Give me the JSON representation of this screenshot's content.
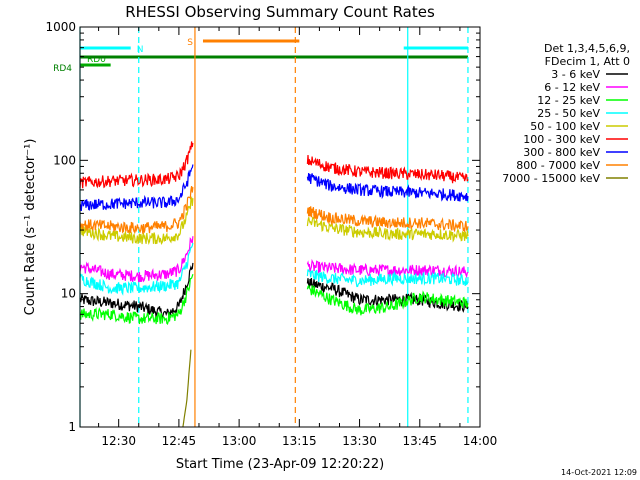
{
  "chart_data": {
    "type": "line",
    "title": "RHESSI Observing Summary Count Rates",
    "xlabel": "Start Time (23-Apr-09 12:20:22)",
    "ylabel": "Count Rate (s⁻¹ detector⁻¹)",
    "yscale": "log",
    "ylim": [
      1,
      1000
    ],
    "y_ticks": [
      {
        "value": 1,
        "label": "1"
      },
      {
        "value": 10,
        "label": "10"
      },
      {
        "value": 100,
        "label": "100"
      },
      {
        "value": 1000,
        "label": "1000"
      }
    ],
    "xlim": [
      "12:20:22",
      "14:00"
    ],
    "x_ticks": [
      "12:30",
      "12:45",
      "13:00",
      "13:15",
      "13:30",
      "13:45",
      "14:00"
    ],
    "timestamp": "14-Oct-2021 12:09",
    "legend": {
      "position": "right",
      "header": [
        "Det 1,3,4,5,6,9,",
        "FDecim 1, Att 0"
      ],
      "entries": [
        {
          "label": "3 - 6 keV",
          "color": "#000000"
        },
        {
          "label": "6 - 12 keV",
          "color": "#ff00ff"
        },
        {
          "label": "12 - 25 keV",
          "color": "#00ff00"
        },
        {
          "label": "25 - 50 keV",
          "color": "#00ffff"
        },
        {
          "label": "50 - 100 keV",
          "color": "#cccc00"
        },
        {
          "label": "100 - 300 keV",
          "color": "#ff0000"
        },
        {
          "label": "300 - 800 keV",
          "color": "#0000ff"
        },
        {
          "label": "800 - 7000 keV",
          "color": "#ff8000"
        },
        {
          "label": "7000 - 15000 keV",
          "color": "#808000"
        }
      ]
    },
    "flags": [
      {
        "label": "N",
        "color": "#00ffff",
        "spans": [
          [
            "12:20:22",
            "12:33"
          ],
          [
            "13:41",
            "13:57"
          ]
        ]
      },
      {
        "label": "S",
        "color": "#ff8000",
        "spans": [
          [
            "12:51",
            "13:15"
          ]
        ]
      },
      {
        "label": "RD0",
        "color": "#00aa00",
        "spans": [
          [
            "12:20:22",
            "12:28"
          ]
        ]
      },
      {
        "label": "RD4",
        "color": "#008000",
        "spans": [
          [
            "12:20:22",
            "13:57"
          ]
        ]
      }
    ],
    "vertical_markers": [
      {
        "time": "12:20:22",
        "color": "#00ffff",
        "style": "solid"
      },
      {
        "time": "12:35",
        "color": "#00ffff",
        "style": "dashed"
      },
      {
        "time": "12:49",
        "color": "#ff8000",
        "style": "solid"
      },
      {
        "time": "13:14",
        "color": "#ff8000",
        "style": "dashed"
      },
      {
        "time": "13:42",
        "color": "#00ffff",
        "style": "solid"
      },
      {
        "time": "13:57",
        "color": "#00ffff",
        "style": "dashed"
      }
    ],
    "data_gap": [
      "12:49",
      "13:17"
    ],
    "series": [
      {
        "name": "3 - 6 keV",
        "color": "#000000",
        "points": [
          [
            "12:20:22",
            9
          ],
          [
            "12:28",
            8.5
          ],
          [
            "12:35",
            8
          ],
          [
            "12:42",
            7
          ],
          [
            "12:45",
            8
          ],
          [
            "12:47",
            12
          ],
          [
            "12:48.5",
            17
          ],
          [
            "13:17",
            12
          ],
          [
            "13:23",
            11
          ],
          [
            "13:30",
            9
          ],
          [
            "13:38",
            9
          ],
          [
            "13:45",
            9
          ],
          [
            "13:50",
            8.5
          ],
          [
            "13:57",
            8
          ]
        ]
      },
      {
        "name": "6 - 12 keV",
        "color": "#ff00ff",
        "points": [
          [
            "12:20:22",
            16
          ],
          [
            "12:28",
            14
          ],
          [
            "12:35",
            13.5
          ],
          [
            "12:42",
            14
          ],
          [
            "12:45",
            15
          ],
          [
            "12:47",
            20
          ],
          [
            "12:48.5",
            27
          ],
          [
            "13:17",
            16
          ],
          [
            "13:23",
            15.5
          ],
          [
            "13:30",
            15
          ],
          [
            "13:38",
            15
          ],
          [
            "13:45",
            15
          ],
          [
            "13:50",
            15
          ],
          [
            "13:57",
            14.5
          ]
        ]
      },
      {
        "name": "12 - 25 keV",
        "color": "#00ff00",
        "points": [
          [
            "12:20:22",
            7
          ],
          [
            "12:28",
            7
          ],
          [
            "12:35",
            6.5
          ],
          [
            "12:42",
            6.5
          ],
          [
            "12:45",
            7
          ],
          [
            "12:47",
            10
          ],
          [
            "12:48.5",
            14
          ],
          [
            "13:17",
            11
          ],
          [
            "13:23",
            9
          ],
          [
            "13:30",
            7.5
          ],
          [
            "13:38",
            8
          ],
          [
            "13:45",
            9.5
          ],
          [
            "13:50",
            9
          ],
          [
            "13:57",
            8.5
          ]
        ]
      },
      {
        "name": "25 - 50 keV",
        "color": "#00ffff",
        "points": [
          [
            "12:20:22",
            13
          ],
          [
            "12:28",
            11
          ],
          [
            "12:35",
            11
          ],
          [
            "12:42",
            11.5
          ],
          [
            "12:45",
            12
          ],
          [
            "12:47",
            17
          ],
          [
            "12:48.5",
            24
          ],
          [
            "13:17",
            14
          ],
          [
            "13:23",
            13
          ],
          [
            "13:30",
            12.5
          ],
          [
            "13:38",
            13
          ],
          [
            "13:45",
            13
          ],
          [
            "13:50",
            13
          ],
          [
            "13:57",
            12.5
          ]
        ]
      },
      {
        "name": "50 - 100 keV",
        "color": "#cccc00",
        "points": [
          [
            "12:20:22",
            30
          ],
          [
            "12:28",
            27
          ],
          [
            "12:35",
            26
          ],
          [
            "12:42",
            26
          ],
          [
            "12:45",
            28
          ],
          [
            "12:47",
            38
          ],
          [
            "12:48.5",
            52
          ],
          [
            "13:17",
            35
          ],
          [
            "13:23",
            31
          ],
          [
            "13:30",
            29
          ],
          [
            "13:38",
            28
          ],
          [
            "13:45",
            28
          ],
          [
            "13:50",
            28
          ],
          [
            "13:57",
            27
          ]
        ]
      },
      {
        "name": "100 - 300 keV",
        "color": "#ff0000",
        "points": [
          [
            "12:20:22",
            68
          ],
          [
            "12:28",
            70
          ],
          [
            "12:35",
            71
          ],
          [
            "12:42",
            72
          ],
          [
            "12:45",
            76
          ],
          [
            "12:47",
            100
          ],
          [
            "12:48.5",
            135
          ],
          [
            "13:17",
            100
          ],
          [
            "13:23",
            88
          ],
          [
            "13:30",
            82
          ],
          [
            "13:38",
            80
          ],
          [
            "13:45",
            78
          ],
          [
            "13:50",
            77
          ],
          [
            "13:57",
            72
          ]
        ]
      },
      {
        "name": "300 - 800 keV",
        "color": "#0000ff",
        "points": [
          [
            "12:20:22",
            46
          ],
          [
            "12:28",
            47
          ],
          [
            "12:35",
            48
          ],
          [
            "12:42",
            48
          ],
          [
            "12:45",
            51
          ],
          [
            "12:47",
            68
          ],
          [
            "12:48.5",
            93
          ],
          [
            "13:17",
            75
          ],
          [
            "13:23",
            64
          ],
          [
            "13:30",
            60
          ],
          [
            "13:38",
            58
          ],
          [
            "13:45",
            57
          ],
          [
            "13:50",
            56
          ],
          [
            "13:57",
            54
          ]
        ]
      },
      {
        "name": "800 - 7000 keV",
        "color": "#ff8000",
        "points": [
          [
            "12:20:22",
            33
          ],
          [
            "12:28",
            32
          ],
          [
            "12:35",
            31
          ],
          [
            "12:42",
            32
          ],
          [
            "12:45",
            34
          ],
          [
            "12:47",
            46
          ],
          [
            "12:48.5",
            63
          ],
          [
            "13:17",
            42
          ],
          [
            "13:23",
            37
          ],
          [
            "13:30",
            35
          ],
          [
            "13:38",
            34
          ],
          [
            "13:45",
            34
          ],
          [
            "13:50",
            33
          ],
          [
            "13:57",
            32
          ]
        ]
      },
      {
        "name": "7000 - 15000 keV",
        "color": "#808000",
        "points": [
          [
            "12:46",
            1
          ],
          [
            "12:47",
            1.6
          ],
          [
            "12:47.5",
            2.5
          ],
          [
            "12:48",
            3.8
          ]
        ]
      }
    ]
  }
}
